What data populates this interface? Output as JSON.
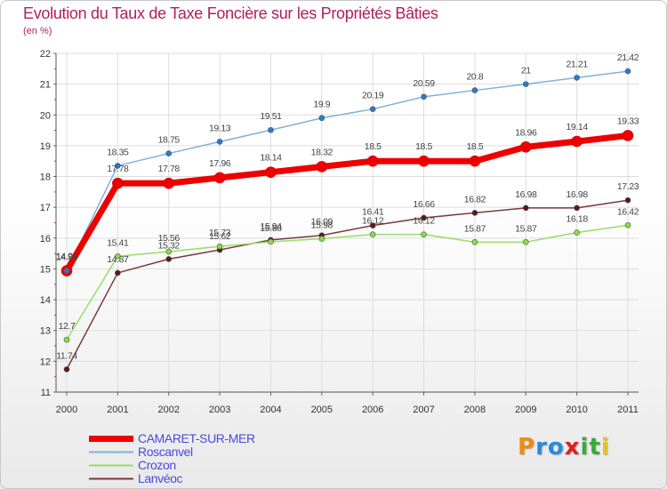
{
  "chart_data": {
    "type": "line",
    "title": "Evolution du Taux de Taxe Foncière sur les Propriétés Bâties",
    "ylabel": "(en %)",
    "xlabel": "",
    "categories": [
      "2000",
      "2001",
      "2002",
      "2003",
      "2004",
      "2005",
      "2006",
      "2007",
      "2008",
      "2009",
      "2010",
      "2011"
    ],
    "ylim": [
      11,
      22
    ],
    "yticks": [
      "11",
      "12",
      "13",
      "14",
      "15",
      "16",
      "17",
      "18",
      "19",
      "20",
      "21",
      "22"
    ],
    "series": [
      {
        "name": "CAMARET-SUR-MER",
        "color": "#ee0000",
        "values": [
          14.94,
          17.78,
          17.78,
          17.96,
          18.14,
          18.32,
          18.5,
          18.5,
          18.5,
          18.96,
          19.14,
          19.33
        ],
        "labels": [
          "14.94",
          "17.78",
          "17.78",
          "17.96",
          "18.14",
          "18.32",
          "18.5",
          "18.5",
          "18.5",
          "18.96",
          "19.14",
          "19.33"
        ]
      },
      {
        "name": "Roscanvel",
        "color": "#7fb2d8",
        "values": [
          14.94,
          18.35,
          18.75,
          19.13,
          19.51,
          19.9,
          20.19,
          20.59,
          20.8,
          21.0,
          21.21,
          21.42
        ],
        "labels": [
          "14.94",
          "18.35",
          "18.75",
          "19.13",
          "19.51",
          "19.9",
          "20.19",
          "20.59",
          "20.8",
          "21",
          "21.21",
          "21.42"
        ]
      },
      {
        "name": "Crozon",
        "color": "#99dd66",
        "values": [
          12.7,
          15.41,
          15.56,
          15.73,
          15.88,
          15.98,
          16.12,
          16.12,
          15.87,
          15.87,
          16.18,
          16.42
        ],
        "labels": [
          "12.7",
          "15.41",
          "15.56",
          "15.73",
          "15.88",
          "15.98",
          "16.12",
          "16.12",
          "15.87",
          "15.87",
          "16.18",
          "16.42"
        ]
      },
      {
        "name": "Lanvéoc",
        "color": "#7a3a3a",
        "values": [
          11.74,
          14.87,
          15.32,
          15.62,
          15.94,
          16.09,
          16.41,
          16.66,
          16.82,
          16.98,
          16.98,
          17.23
        ],
        "labels": [
          "11.74",
          "14.87",
          "15.32",
          "15.62",
          "15.94",
          "16.09",
          "16.41",
          "16.66",
          "16.82",
          "16.98",
          "16.98",
          "17.23"
        ]
      }
    ]
  },
  "legend": {
    "items": [
      {
        "label": "CAMARET-SUR-MER",
        "color": "#ee0000"
      },
      {
        "label": "Roscanvel",
        "color": "#7fb2d8"
      },
      {
        "label": "Crozon",
        "color": "#99dd66"
      },
      {
        "label": "Lanvéoc",
        "color": "#7a3a3a"
      }
    ]
  },
  "logo": {
    "text": "Proxiti",
    "letters": [
      {
        "ch": "P",
        "color": "#f08a10"
      },
      {
        "ch": "r",
        "color": "#2a8ad8"
      },
      {
        "ch": "o",
        "color": "#2a8ad8"
      },
      {
        "ch": "x",
        "color": "#e02020"
      },
      {
        "ch": "i",
        "color": "#3aaa3a"
      },
      {
        "ch": "t",
        "color": "#3aaa3a"
      },
      {
        "ch": "i",
        "color": "#e8c020"
      }
    ]
  }
}
